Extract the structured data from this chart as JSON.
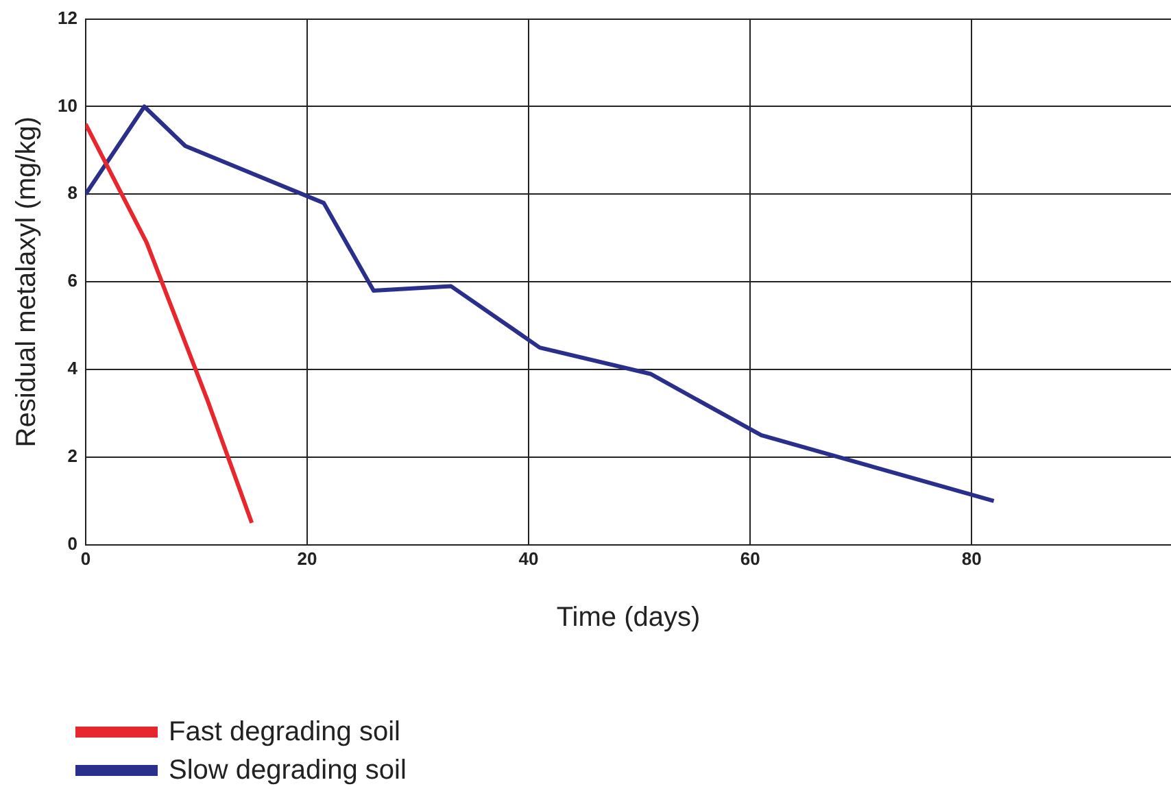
{
  "chart_data": {
    "type": "line",
    "xlabel": "Time (days)",
    "ylabel": "Residual metalaxyl (mg/kg)",
    "xlim": [
      0,
      98
    ],
    "xticks": [
      0,
      20,
      40,
      60,
      80
    ],
    "ylim": [
      0,
      12
    ],
    "yticks": [
      0,
      2,
      4,
      6,
      8,
      10,
      12
    ],
    "grid": true,
    "legend": "bottom",
    "marker": "none",
    "line_style": "solid",
    "series": [
      {
        "name": "Fast degrading soil",
        "color": "#e8262d",
        "x": [
          0,
          5.5,
          11,
          15
        ],
        "values": [
          9.6,
          6.9,
          3.3,
          0.5
        ]
      },
      {
        "name": "Slow degrading soil",
        "color": "#2b2f8c",
        "x": [
          0,
          5.3,
          9,
          21.5,
          26,
          33,
          41,
          51,
          61,
          82
        ],
        "values": [
          8.0,
          10.0,
          9.1,
          7.8,
          5.8,
          5.9,
          4.5,
          3.9,
          2.5,
          1.0
        ]
      }
    ]
  }
}
